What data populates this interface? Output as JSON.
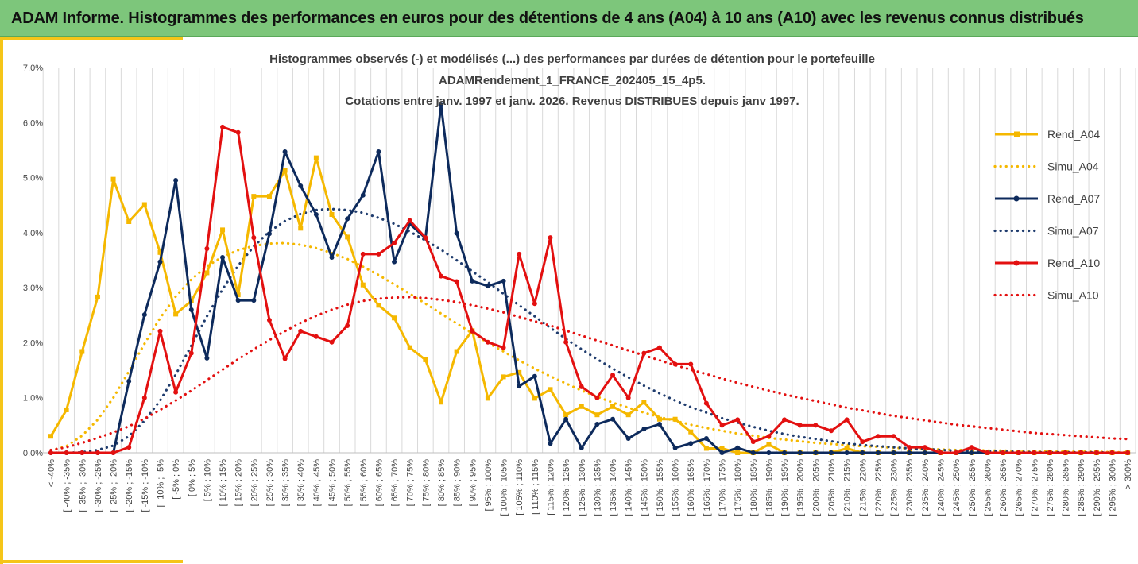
{
  "header": {
    "title": "ADAM Informe. Histogrammes des performances en euros pour des détentions de 4 ans (A04) à 10 ans (A10) avec les revenus connus distribués"
  },
  "chart_data": {
    "type": "line",
    "title_lines": [
      "Histogrammes observés (-) et modélisés (...) des performances par durées de détention pour le portefeuille",
      "ADAMRendement_1_FRANCE_202405_15_4p5.",
      "Cotations entre janv. 1997 et janv. 2026. Revenus DISTRIBUES depuis janv 1997."
    ],
    "xlabel": "",
    "ylabel": "",
    "ylim": [
      0,
      7
    ],
    "y_ticks": [
      "0,0%",
      "1,0%",
      "2,0%",
      "3,0%",
      "4,0%",
      "5,0%",
      "6,0%",
      "7,0%"
    ],
    "categories": [
      "< -40%",
      "[ -40% ; -35%",
      "[ -35% ; -30%",
      "[ -30% ; -25%",
      "[ -25% ; -20%",
      "[ -20% ; -15%",
      "[ -15% ; -10%",
      "[ -10% ; -5%",
      "[ -5% ; 0%",
      "[ 0% ; 5%",
      "[ 5% ; 10%",
      "[ 10% ; 15%",
      "[ 15% ; 20%",
      "[ 20% ; 25%",
      "[ 25% ; 30%",
      "[ 30% ; 35%",
      "[ 35% ; 40%",
      "[ 40% ; 45%",
      "[ 45% ; 50%",
      "[ 50% ; 55%",
      "[ 55% ; 60%",
      "[ 60% ; 65%",
      "[ 65% ; 70%",
      "[ 70% ; 75%",
      "[ 75% ; 80%",
      "[ 80% ; 85%",
      "[ 85% ; 90%",
      "[ 90% ; 95%",
      "[ 95% ; 100%",
      "[ 100% ; 105%",
      "[ 105% ; 110%",
      "[ 110% ; 115%",
      "[ 115% ; 120%",
      "[ 120% ; 125%",
      "[ 125% ; 130%",
      "[ 130% ; 135%",
      "[ 135% ; 140%",
      "[ 140% ; 145%",
      "[ 145% ; 150%",
      "[ 150% ; 155%",
      "[ 155% ; 160%",
      "[ 160% ; 165%",
      "[ 165% ; 170%",
      "[ 170% ; 175%",
      "[ 175% ; 180%",
      "[ 180% ; 185%",
      "[ 185% ; 190%",
      "[ 190% ; 195%",
      "[ 195% ; 200%",
      "[ 200% ; 205%",
      "[ 205% ; 210%",
      "[ 210% ; 215%",
      "[ 215% ; 220%",
      "[ 220% ; 225%",
      "[ 225% ; 230%",
      "[ 230% ; 235%",
      "[ 235% ; 240%",
      "[ 240% ; 245%",
      "[ 245% ; 250%",
      "[ 250% ; 255%",
      "[ 255% ; 260%",
      "[ 260% ; 265%",
      "[ 265% ; 270%",
      "[ 270% ; 275%",
      "[ 275% ; 280%",
      "[ 280% ; 285%",
      "[ 285% ; 290%",
      "[ 290% ; 295%",
      "[ 295% ; 300%",
      "> 300%"
    ],
    "series": [
      {
        "name": "Rend_A04",
        "style": "solid",
        "color": "#f5b800",
        "values": [
          0.3,
          0.78,
          1.84,
          2.83,
          4.97,
          4.2,
          4.51,
          3.64,
          2.52,
          2.76,
          3.27,
          4.05,
          2.87,
          4.66,
          4.66,
          5.13,
          4.08,
          5.36,
          4.33,
          3.92,
          3.05,
          2.68,
          2.45,
          1.91,
          1.69,
          0.92,
          1.84,
          2.22,
          0.99,
          1.38,
          1.46,
          0.99,
          1.15,
          0.69,
          0.84,
          0.69,
          0.84,
          0.69,
          0.92,
          0.61,
          0.61,
          0.38,
          0.08,
          0.08,
          0.0,
          0.0,
          0.15,
          0.0,
          0.0,
          0.0,
          0.0,
          0.08,
          0.0,
          0.0,
          0.0,
          0.0,
          0.0,
          0.0,
          0.0,
          0.0,
          0.0,
          0.0,
          0.0,
          0.0,
          0.0,
          0.0,
          0.0,
          0.0,
          0.0,
          0.0
        ]
      },
      {
        "name": "Simu_A04",
        "style": "dotted",
        "color": "#f5b800",
        "values": [
          0.04,
          0.12,
          0.31,
          0.6,
          1.0,
          1.48,
          1.98,
          2.45,
          2.84,
          3.15,
          3.39,
          3.56,
          3.68,
          3.76,
          3.8,
          3.81,
          3.78,
          3.72,
          3.63,
          3.52,
          3.38,
          3.23,
          3.06,
          2.89,
          2.71,
          2.53,
          2.35,
          2.17,
          2.0,
          1.84,
          1.68,
          1.53,
          1.39,
          1.26,
          1.13,
          1.02,
          0.91,
          0.82,
          0.73,
          0.65,
          0.58,
          0.51,
          0.45,
          0.4,
          0.35,
          0.31,
          0.27,
          0.24,
          0.21,
          0.18,
          0.16,
          0.14,
          0.12,
          0.11,
          0.09,
          0.08,
          0.07,
          0.06,
          0.05,
          0.05,
          0.04,
          0.04,
          0.03,
          0.03,
          0.02,
          0.02,
          0.02,
          0.02,
          0.01,
          0.01
        ]
      },
      {
        "name": "Rend_A07",
        "style": "solid",
        "color": "#0d2a5c",
        "values": [
          0.0,
          0.0,
          0.0,
          0.0,
          0.0,
          1.3,
          2.51,
          3.47,
          4.95,
          2.6,
          1.72,
          3.55,
          2.77,
          2.77,
          3.98,
          5.47,
          4.85,
          4.33,
          3.55,
          4.25,
          4.68,
          5.47,
          3.47,
          4.16,
          3.9,
          6.32,
          3.99,
          3.12,
          3.03,
          3.12,
          1.21,
          1.39,
          0.17,
          0.61,
          0.09,
          0.52,
          0.61,
          0.26,
          0.43,
          0.52,
          0.09,
          0.17,
          0.26,
          0.0,
          0.09,
          0.0,
          0.0,
          0.0,
          0.0,
          0.0,
          0.0,
          0.0,
          0.0,
          0.0,
          0.0,
          0.0,
          0.0,
          0.0,
          0.0,
          0.0,
          0.0,
          0.0,
          0.0,
          0.0,
          0.0,
          0.0,
          0.0,
          0.0,
          0.0,
          0.0
        ]
      },
      {
        "name": "Simu_A07",
        "style": "dotted",
        "color": "#1f3c6e",
        "values": [
          0.0,
          0.0,
          0.01,
          0.05,
          0.13,
          0.3,
          0.58,
          0.95,
          1.42,
          1.95,
          2.48,
          2.97,
          3.4,
          3.75,
          4.02,
          4.21,
          4.34,
          4.41,
          4.43,
          4.41,
          4.36,
          4.27,
          4.16,
          4.02,
          3.86,
          3.69,
          3.5,
          3.3,
          3.1,
          2.89,
          2.68,
          2.48,
          2.27,
          2.07,
          1.88,
          1.7,
          1.53,
          1.37,
          1.22,
          1.08,
          0.95,
          0.83,
          0.73,
          0.63,
          0.55,
          0.47,
          0.4,
          0.34,
          0.29,
          0.25,
          0.21,
          0.17,
          0.14,
          0.12,
          0.1,
          0.08,
          0.07,
          0.05,
          0.04,
          0.04,
          0.03,
          0.02,
          0.02,
          0.01,
          0.01,
          0.01,
          0.01,
          0.01,
          0.0,
          0.0
        ]
      },
      {
        "name": "Rend_A10",
        "style": "solid",
        "color": "#e31010",
        "values": [
          0.0,
          0.0,
          0.0,
          0.0,
          0.0,
          0.1,
          1.0,
          2.21,
          1.1,
          1.81,
          3.71,
          5.92,
          5.82,
          3.91,
          2.41,
          1.71,
          2.21,
          2.11,
          2.01,
          2.31,
          3.61,
          3.61,
          3.81,
          4.22,
          3.91,
          3.21,
          3.11,
          2.21,
          2.01,
          1.91,
          3.61,
          2.71,
          3.91,
          2.01,
          1.2,
          1.0,
          1.41,
          1.0,
          1.81,
          1.91,
          1.61,
          1.61,
          0.9,
          0.5,
          0.6,
          0.2,
          0.3,
          0.6,
          0.5,
          0.5,
          0.4,
          0.6,
          0.2,
          0.3,
          0.3,
          0.1,
          0.1,
          0.0,
          0.0,
          0.1,
          0.0,
          0.0,
          0.0,
          0.0,
          0.0,
          0.0,
          0.0,
          0.0,
          0.0,
          0.0
        ]
      },
      {
        "name": "Simu_A10",
        "style": "dotted",
        "color": "#e31010",
        "values": [
          0.05,
          0.1,
          0.18,
          0.27,
          0.37,
          0.48,
          0.62,
          0.78,
          0.95,
          1.13,
          1.32,
          1.51,
          1.7,
          1.88,
          2.05,
          2.21,
          2.36,
          2.49,
          2.6,
          2.69,
          2.76,
          2.8,
          2.82,
          2.83,
          2.81,
          2.78,
          2.74,
          2.68,
          2.62,
          2.55,
          2.47,
          2.39,
          2.31,
          2.22,
          2.13,
          2.04,
          1.95,
          1.86,
          1.77,
          1.68,
          1.59,
          1.51,
          1.43,
          1.35,
          1.27,
          1.2,
          1.13,
          1.06,
          1.0,
          0.94,
          0.88,
          0.82,
          0.77,
          0.72,
          0.67,
          0.63,
          0.59,
          0.55,
          0.51,
          0.48,
          0.45,
          0.42,
          0.39,
          0.36,
          0.34,
          0.32,
          0.3,
          0.28,
          0.26,
          0.25
        ]
      }
    ],
    "legend_position": "right",
    "grid": "vertical"
  }
}
